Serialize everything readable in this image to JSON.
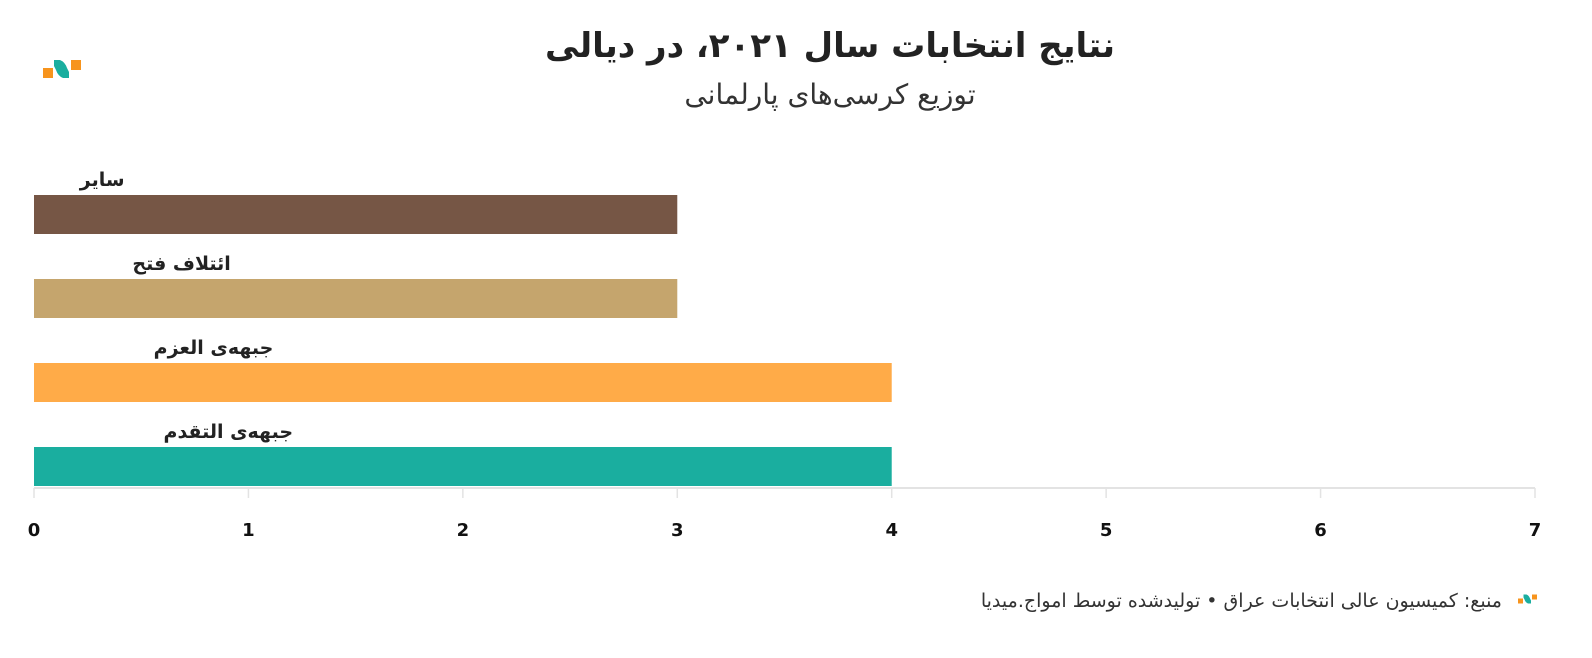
{
  "title": "نتایج انتخابات سال ۲۰۲۱، در دیالی",
  "subtitle": "توزیع کرسی‌های پارلمانی",
  "footer": "منبع: کمیسیون عالی انتخابات عراق • تولیدشده توسط امواج.میدیا",
  "chart_data": {
    "type": "bar",
    "orientation": "horizontal",
    "categories": [
      "سایر",
      "ائتلاف فتح",
      "جبهه‌ی العزم",
      "جبهه‌ی التقدم"
    ],
    "values": [
      3,
      3,
      4,
      4
    ],
    "colors": [
      "#765645",
      "#c5a56d",
      "#ffab48",
      "#1aae9f"
    ],
    "xlim": [
      0,
      7
    ],
    "xticks": [
      "0",
      "1",
      "2",
      "3",
      "4",
      "5",
      "6",
      "7"
    ],
    "grid": false
  }
}
